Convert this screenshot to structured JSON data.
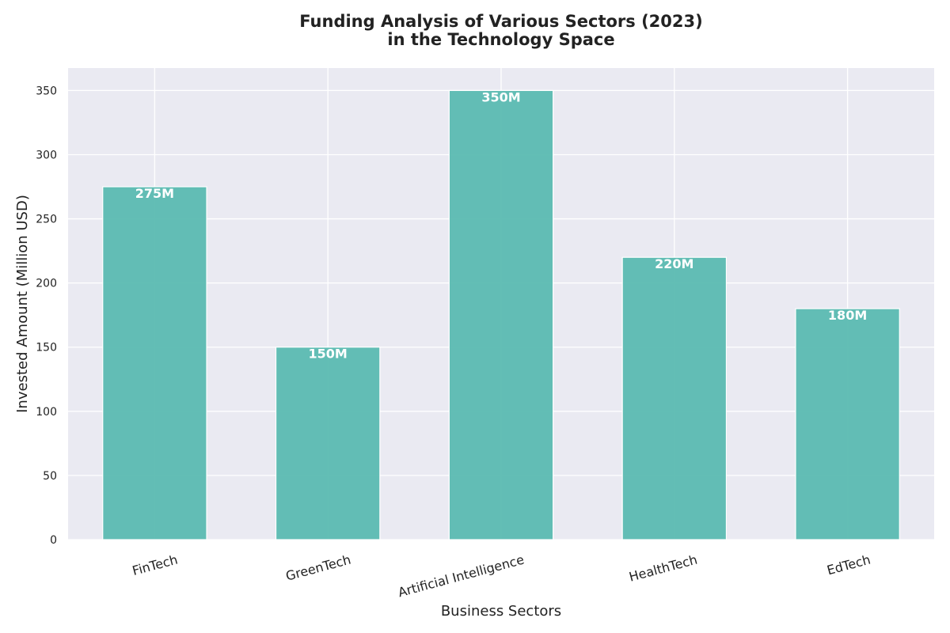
{
  "chart_data": {
    "type": "bar",
    "title": "Funding Analysis of Various Sectors (2023)",
    "subtitle": "in the Technology Space",
    "xlabel": "Business Sectors",
    "ylabel": "Invested Amount (Million USD)",
    "categories": [
      "FinTech",
      "GreenTech",
      "Artificial Intelligence",
      "HealthTech",
      "EdTech"
    ],
    "values": [
      275,
      150,
      350,
      220,
      180
    ],
    "data_labels": [
      "275M",
      "150M",
      "350M",
      "220M",
      "180M"
    ],
    "yticks": [
      "0",
      "50",
      "100",
      "150",
      "200",
      "250",
      "300",
      "350"
    ],
    "ylim": [
      0,
      367.5
    ],
    "grid": true,
    "colors": {
      "bar": "#5bbbb1",
      "plot_background": "#eaeaf2",
      "grid": "#ffffff",
      "text": "#222222"
    }
  }
}
